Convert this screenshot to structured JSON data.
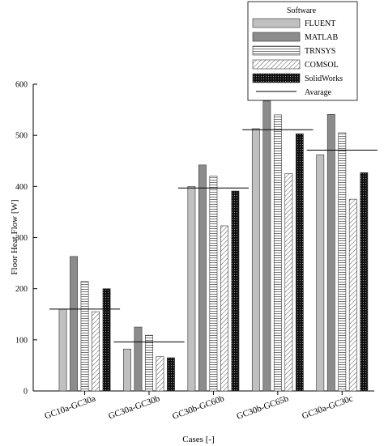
{
  "chart_data": {
    "type": "bar",
    "title": "",
    "xlabel": "Cases [-]",
    "ylabel": "Floor Heat Flow [W]",
    "ylim": [
      0,
      600
    ],
    "yticks": [
      0,
      100,
      200,
      300,
      400,
      500,
      600
    ],
    "grid": false,
    "legend_position": "top-right",
    "legend_title": "Software",
    "categories": [
      "GC10a-GC30a",
      "GC30a-GC30b",
      "GC30b-GC60b",
      "GC30b-GC65b",
      "GC30a-GC30c"
    ],
    "series": [
      {
        "name": "FLUENT",
        "values": [
          160,
          82,
          400,
          513,
          462
        ],
        "fill": "#c0c0c0",
        "pattern": "solid"
      },
      {
        "name": "MATLAB",
        "values": [
          263,
          125,
          442,
          567,
          541
        ],
        "fill": "#8c8c8c",
        "pattern": "solid"
      },
      {
        "name": "TRNSYS",
        "values": [
          214,
          109,
          420,
          540,
          505
        ],
        "fill": "#ffffff",
        "pattern": "horizontal-lines"
      },
      {
        "name": "COMSOL",
        "values": [
          155,
          67,
          323,
          425,
          375
        ],
        "fill": "#ffffff",
        "pattern": "diagonal-hatch"
      },
      {
        "name": "SolidWorks",
        "values": [
          200,
          65,
          391,
          503,
          427
        ],
        "fill": "#111111",
        "pattern": "dotted-dark"
      }
    ],
    "average": {
      "name": "Avarage",
      "values": [
        160,
        96,
        397,
        511,
        471
      ]
    }
  }
}
